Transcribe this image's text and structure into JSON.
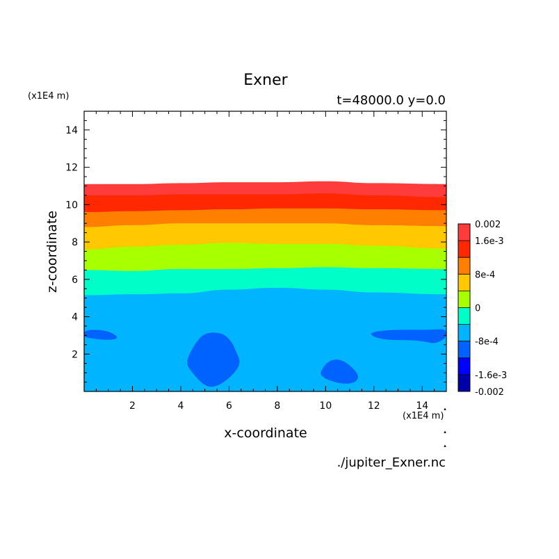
{
  "chart_data": {
    "type": "heatmap",
    "title": "Exner",
    "subtitle": "t=48000.0 y=0.0",
    "xlabel": "x-coordinate",
    "ylabel": "z-coordinate",
    "x_unit": "(x1E4 m)",
    "y_unit": "(x1E4 m)",
    "source_label": "./jupiter_Exner.nc",
    "xlim": [
      0,
      15
    ],
    "ylim": [
      0,
      15
    ],
    "x_ticks": [
      "2",
      "4",
      "6",
      "8",
      "10",
      "12",
      "14"
    ],
    "y_ticks": [
      "2",
      "4",
      "6",
      "8",
      "10",
      "12",
      "14"
    ],
    "colorbar": {
      "range": [
        -0.002,
        0.002
      ],
      "labels": [
        "0.002",
        "1.6e-3",
        "8e-4",
        "0",
        "-8e-4",
        "-1.6e-3",
        "-0.002"
      ],
      "bands": [
        {
          "from": -0.002,
          "to": -0.0016,
          "color": "#0000a8"
        },
        {
          "from": -0.0016,
          "to": -0.0012,
          "color": "#0000ff"
        },
        {
          "from": -0.0012,
          "to": -0.0008,
          "color": "#0062ff"
        },
        {
          "from": -0.0008,
          "to": -0.0004,
          "color": "#00b4ff"
        },
        {
          "from": -0.0004,
          "to": 0.0,
          "color": "#00ffc8"
        },
        {
          "from": 0.0,
          "to": 0.0004,
          "color": "#a8ff00"
        },
        {
          "from": 0.0004,
          "to": 0.0008,
          "color": "#ffc800"
        },
        {
          "from": 0.0008,
          "to": 0.0012,
          "color": "#ff8000"
        },
        {
          "from": 0.0012,
          "to": 0.0016,
          "color": "#ff2800"
        },
        {
          "from": 0.0016,
          "to": 0.002,
          "color": "#ff3c3c"
        }
      ]
    },
    "contour_bands": [
      {
        "name": "top",
        "color": "#ff3c3c",
        "upper_z": [
          11.1,
          11.1,
          11.15,
          11.2,
          11.2,
          11.25,
          11.15,
          11.1
        ]
      },
      {
        "name": "b2",
        "color": "#ff2800",
        "upper_z": [
          10.5,
          10.5,
          10.55,
          10.55,
          10.55,
          10.6,
          10.5,
          10.4
        ]
      },
      {
        "name": "b3",
        "color": "#ff8000",
        "upper_z": [
          9.6,
          9.65,
          9.7,
          9.75,
          9.8,
          9.8,
          9.75,
          9.7
        ]
      },
      {
        "name": "b4",
        "color": "#ffc800",
        "upper_z": [
          8.8,
          8.9,
          9.0,
          9.0,
          9.0,
          9.0,
          8.9,
          8.85
        ]
      },
      {
        "name": "b5",
        "color": "#a8ff00",
        "upper_z": [
          7.6,
          7.75,
          7.85,
          7.95,
          7.9,
          7.9,
          7.8,
          7.65
        ]
      },
      {
        "name": "b6",
        "color": "#00ffc8",
        "upper_z": [
          6.5,
          6.45,
          6.55,
          6.55,
          6.6,
          6.65,
          6.6,
          6.55
        ]
      },
      {
        "name": "b7",
        "color": "#00b4ff",
        "upper_z": [
          5.15,
          5.2,
          5.25,
          5.45,
          5.55,
          5.45,
          5.3,
          5.2
        ]
      }
    ],
    "band_x": [
      0,
      2,
      4,
      6,
      8,
      10,
      12,
      15
    ],
    "blobs": [
      {
        "name": "blob-left-edge",
        "color": "#0062ff",
        "points": [
          [
            0,
            3.3
          ],
          [
            0.8,
            3.3
          ],
          [
            1.3,
            3.05
          ],
          [
            1.4,
            2.8
          ],
          [
            0.8,
            2.75
          ],
          [
            0.3,
            2.85
          ],
          [
            0,
            2.9
          ]
        ]
      },
      {
        "name": "blob-center",
        "color": "#0062ff",
        "points": [
          [
            4.6,
            2.6
          ],
          [
            5.0,
            3.15
          ],
          [
            5.7,
            3.15
          ],
          [
            6.1,
            2.7
          ],
          [
            6.3,
            2.1
          ],
          [
            6.5,
            1.5
          ],
          [
            6.1,
            0.8
          ],
          [
            5.5,
            0.25
          ],
          [
            5.0,
            0.25
          ],
          [
            4.4,
            1.1
          ],
          [
            4.2,
            1.6
          ]
        ]
      },
      {
        "name": "blob-lower-right",
        "color": "#0062ff",
        "points": [
          [
            9.8,
            1.1
          ],
          [
            10.1,
            1.65
          ],
          [
            10.6,
            1.75
          ],
          [
            11.1,
            1.3
          ],
          [
            11.4,
            0.8
          ],
          [
            11.2,
            0.45
          ],
          [
            10.7,
            0.4
          ],
          [
            10.1,
            0.6
          ],
          [
            9.8,
            0.85
          ]
        ]
      },
      {
        "name": "blob-right-edge",
        "color": "#0062ff",
        "points": [
          [
            11.8,
            3.15
          ],
          [
            12.6,
            3.3
          ],
          [
            13.6,
            3.3
          ],
          [
            14.4,
            3.3
          ],
          [
            15,
            3.35
          ],
          [
            15,
            2.85
          ],
          [
            14.5,
            2.55
          ],
          [
            14.2,
            2.65
          ],
          [
            13.6,
            2.75
          ],
          [
            12.6,
            2.75
          ],
          [
            12.0,
            2.9
          ]
        ]
      }
    ]
  }
}
